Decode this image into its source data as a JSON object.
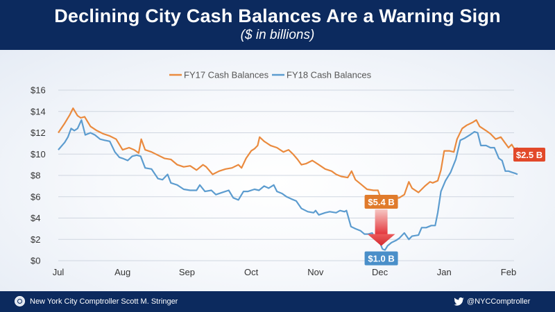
{
  "header": {
    "title": "Declining City Cash Balances Are a Warning Sign",
    "subtitle": "($ in billions)"
  },
  "footer": {
    "org": "New York City Comptroller Scott M. Stringer",
    "handle": "@NYCComptroller"
  },
  "colors": {
    "header_bg": "#0c2a5e",
    "fy17": "#ea8a3e",
    "fy18": "#5c9ccf",
    "label_fy17": "#e07b2c",
    "label_fy18": "#4a8fc9",
    "end_label": "#e2492a",
    "arrow": "#e8474a"
  },
  "chart_data": {
    "type": "line",
    "title": "Declining City Cash Balances Are a Warning Sign",
    "subtitle": "($ in billions)",
    "xlabel": "",
    "ylabel": "",
    "ylim": [
      0,
      16
    ],
    "yticks": [
      0,
      2,
      4,
      6,
      8,
      10,
      12,
      14,
      16
    ],
    "ytick_labels": [
      "$0",
      "$2",
      "$4",
      "$6",
      "$8",
      "$10",
      "$12",
      "$14",
      "$16"
    ],
    "xticks": [
      {
        "label": "Jul",
        "x": 0
      },
      {
        "label": "Aug",
        "x": 1
      },
      {
        "label": "Sep",
        "x": 2
      },
      {
        "label": "Oct",
        "x": 3
      },
      {
        "label": "Nov",
        "x": 4
      },
      {
        "label": "Dec",
        "x": 5
      },
      {
        "label": "Jan",
        "x": 6
      },
      {
        "label": "Feb",
        "x": 7
      }
    ],
    "xlim": [
      0,
      7
    ],
    "grid": "horizontal",
    "legend_position": "top-center",
    "series": [
      {
        "name": "FY17 Cash Balances",
        "points": [
          [
            0,
            12.0
          ],
          [
            0.1,
            12.9
          ],
          [
            0.18,
            13.7
          ],
          [
            0.23,
            14.3
          ],
          [
            0.3,
            13.6
          ],
          [
            0.35,
            13.4
          ],
          [
            0.41,
            13.5
          ],
          [
            0.5,
            12.6
          ],
          [
            0.6,
            12.2
          ],
          [
            0.7,
            11.9
          ],
          [
            0.8,
            11.7
          ],
          [
            0.9,
            11.4
          ],
          [
            0.95,
            10.9
          ],
          [
            1.0,
            10.4
          ],
          [
            1.1,
            10.6
          ],
          [
            1.18,
            10.4
          ],
          [
            1.25,
            10.1
          ],
          [
            1.29,
            11.4
          ],
          [
            1.35,
            10.4
          ],
          [
            1.45,
            10.2
          ],
          [
            1.55,
            9.9
          ],
          [
            1.65,
            9.6
          ],
          [
            1.75,
            9.5
          ],
          [
            1.85,
            9.0
          ],
          [
            1.95,
            8.8
          ],
          [
            2.05,
            8.9
          ],
          [
            2.15,
            8.5
          ],
          [
            2.25,
            9.0
          ],
          [
            2.3,
            8.8
          ],
          [
            2.4,
            8.1
          ],
          [
            2.5,
            8.4
          ],
          [
            2.6,
            8.6
          ],
          [
            2.7,
            8.7
          ],
          [
            2.8,
            9.0
          ],
          [
            2.85,
            8.7
          ],
          [
            2.92,
            9.6
          ],
          [
            3.0,
            10.3
          ],
          [
            3.05,
            10.5
          ],
          [
            3.1,
            10.8
          ],
          [
            3.13,
            11.6
          ],
          [
            3.2,
            11.2
          ],
          [
            3.3,
            10.8
          ],
          [
            3.4,
            10.6
          ],
          [
            3.5,
            10.2
          ],
          [
            3.58,
            10.4
          ],
          [
            3.65,
            10.0
          ],
          [
            3.72,
            9.5
          ],
          [
            3.78,
            9.0
          ],
          [
            3.85,
            9.1
          ],
          [
            3.95,
            9.4
          ],
          [
            4.05,
            9.0
          ],
          [
            4.15,
            8.6
          ],
          [
            4.25,
            8.4
          ],
          [
            4.32,
            8.1
          ],
          [
            4.4,
            7.9
          ],
          [
            4.5,
            7.8
          ],
          [
            4.56,
            8.4
          ],
          [
            4.62,
            7.6
          ],
          [
            4.7,
            7.2
          ],
          [
            4.8,
            6.7
          ],
          [
            4.9,
            6.6
          ],
          [
            4.97,
            6.6
          ],
          [
            5.0,
            6.1
          ],
          [
            5.05,
            5.6
          ],
          [
            5.12,
            5.4
          ],
          [
            5.18,
            5.8
          ],
          [
            5.3,
            5.9
          ],
          [
            5.38,
            6.2
          ],
          [
            5.45,
            7.4
          ],
          [
            5.5,
            6.8
          ],
          [
            5.6,
            6.4
          ],
          [
            5.7,
            7.0
          ],
          [
            5.78,
            7.4
          ],
          [
            5.82,
            7.3
          ],
          [
            5.9,
            7.5
          ],
          [
            5.95,
            8.5
          ],
          [
            6.0,
            10.3
          ],
          [
            6.08,
            10.3
          ],
          [
            6.15,
            10.2
          ],
          [
            6.2,
            11.4
          ],
          [
            6.28,
            12.4
          ],
          [
            6.35,
            12.7
          ],
          [
            6.45,
            13.0
          ],
          [
            6.5,
            13.2
          ],
          [
            6.55,
            12.6
          ],
          [
            6.65,
            12.2
          ],
          [
            6.72,
            11.9
          ],
          [
            6.8,
            11.4
          ],
          [
            6.88,
            11.6
          ],
          [
            6.94,
            11.1
          ],
          [
            7.0,
            10.6
          ],
          [
            7.05,
            10.9
          ],
          [
            7.1,
            10.4
          ],
          [
            7.14,
            10.6
          ]
        ]
      },
      {
        "name": "FY18 Cash Balances",
        "points": [
          [
            0,
            10.4
          ],
          [
            0.1,
            11.1
          ],
          [
            0.15,
            11.6
          ],
          [
            0.2,
            12.4
          ],
          [
            0.25,
            12.2
          ],
          [
            0.3,
            12.4
          ],
          [
            0.36,
            13.2
          ],
          [
            0.42,
            11.8
          ],
          [
            0.5,
            12.0
          ],
          [
            0.57,
            11.8
          ],
          [
            0.65,
            11.4
          ],
          [
            0.72,
            11.3
          ],
          [
            0.8,
            11.2
          ],
          [
            0.88,
            10.2
          ],
          [
            0.95,
            9.7
          ],
          [
            1.0,
            9.6
          ],
          [
            1.08,
            9.4
          ],
          [
            1.15,
            9.8
          ],
          [
            1.22,
            9.9
          ],
          [
            1.28,
            9.8
          ],
          [
            1.35,
            8.7
          ],
          [
            1.45,
            8.6
          ],
          [
            1.55,
            7.7
          ],
          [
            1.62,
            7.6
          ],
          [
            1.7,
            8.1
          ],
          [
            1.75,
            7.3
          ],
          [
            1.85,
            7.1
          ],
          [
            1.95,
            6.7
          ],
          [
            2.05,
            6.6
          ],
          [
            2.15,
            6.6
          ],
          [
            2.2,
            7.1
          ],
          [
            2.28,
            6.5
          ],
          [
            2.38,
            6.6
          ],
          [
            2.45,
            6.2
          ],
          [
            2.55,
            6.4
          ],
          [
            2.65,
            6.6
          ],
          [
            2.72,
            5.9
          ],
          [
            2.8,
            5.7
          ],
          [
            2.88,
            6.5
          ],
          [
            2.95,
            6.5
          ],
          [
            3.05,
            6.7
          ],
          [
            3.12,
            6.6
          ],
          [
            3.2,
            7.0
          ],
          [
            3.27,
            6.8
          ],
          [
            3.35,
            7.1
          ],
          [
            3.4,
            6.5
          ],
          [
            3.48,
            6.3
          ],
          [
            3.55,
            6.0
          ],
          [
            3.62,
            5.8
          ],
          [
            3.7,
            5.6
          ],
          [
            3.78,
            4.9
          ],
          [
            3.88,
            4.6
          ],
          [
            3.97,
            4.5
          ],
          [
            4.0,
            4.7
          ],
          [
            4.05,
            4.3
          ],
          [
            4.15,
            4.5
          ],
          [
            4.22,
            4.6
          ],
          [
            4.32,
            4.5
          ],
          [
            4.38,
            4.7
          ],
          [
            4.45,
            4.6
          ],
          [
            4.48,
            4.7
          ],
          [
            4.55,
            3.2
          ],
          [
            4.62,
            3.0
          ],
          [
            4.7,
            2.8
          ],
          [
            4.76,
            2.5
          ],
          [
            4.82,
            2.5
          ],
          [
            4.88,
            2.6
          ],
          [
            4.92,
            2.2
          ],
          [
            4.96,
            2.5
          ],
          [
            5.0,
            1.7
          ],
          [
            5.04,
            1.1
          ],
          [
            5.08,
            1.0
          ],
          [
            5.12,
            1.4
          ],
          [
            5.18,
            1.7
          ],
          [
            5.25,
            1.9
          ],
          [
            5.3,
            2.1
          ],
          [
            5.38,
            2.6
          ],
          [
            5.45,
            2.0
          ],
          [
            5.5,
            2.3
          ],
          [
            5.6,
            2.4
          ],
          [
            5.65,
            3.1
          ],
          [
            5.72,
            3.1
          ],
          [
            5.8,
            3.3
          ],
          [
            5.86,
            3.3
          ],
          [
            5.9,
            4.5
          ],
          [
            5.95,
            6.5
          ],
          [
            6.02,
            7.5
          ],
          [
            6.1,
            8.3
          ],
          [
            6.18,
            9.5
          ],
          [
            6.25,
            11.3
          ],
          [
            6.32,
            11.5
          ],
          [
            6.4,
            11.8
          ],
          [
            6.47,
            12.1
          ],
          [
            6.52,
            12.0
          ],
          [
            6.57,
            10.8
          ],
          [
            6.65,
            10.8
          ],
          [
            6.72,
            10.6
          ],
          [
            6.78,
            10.6
          ],
          [
            6.85,
            9.6
          ],
          [
            6.9,
            9.4
          ],
          [
            6.95,
            8.4
          ],
          [
            7.0,
            8.4
          ],
          [
            7.05,
            8.3
          ],
          [
            7.1,
            8.2
          ],
          [
            7.14,
            8.1
          ]
        ]
      }
    ],
    "annotations": [
      {
        "text": "$5.4 B",
        "x": 5.0,
        "y": 5.4,
        "series": "FY17 Cash Balances"
      },
      {
        "text": "$1.0 B",
        "x": 5.08,
        "y": 1.0,
        "series": "FY18 Cash Balances"
      },
      {
        "text": "$2.5 B",
        "x": 7.14,
        "y": 10.6
      }
    ]
  }
}
